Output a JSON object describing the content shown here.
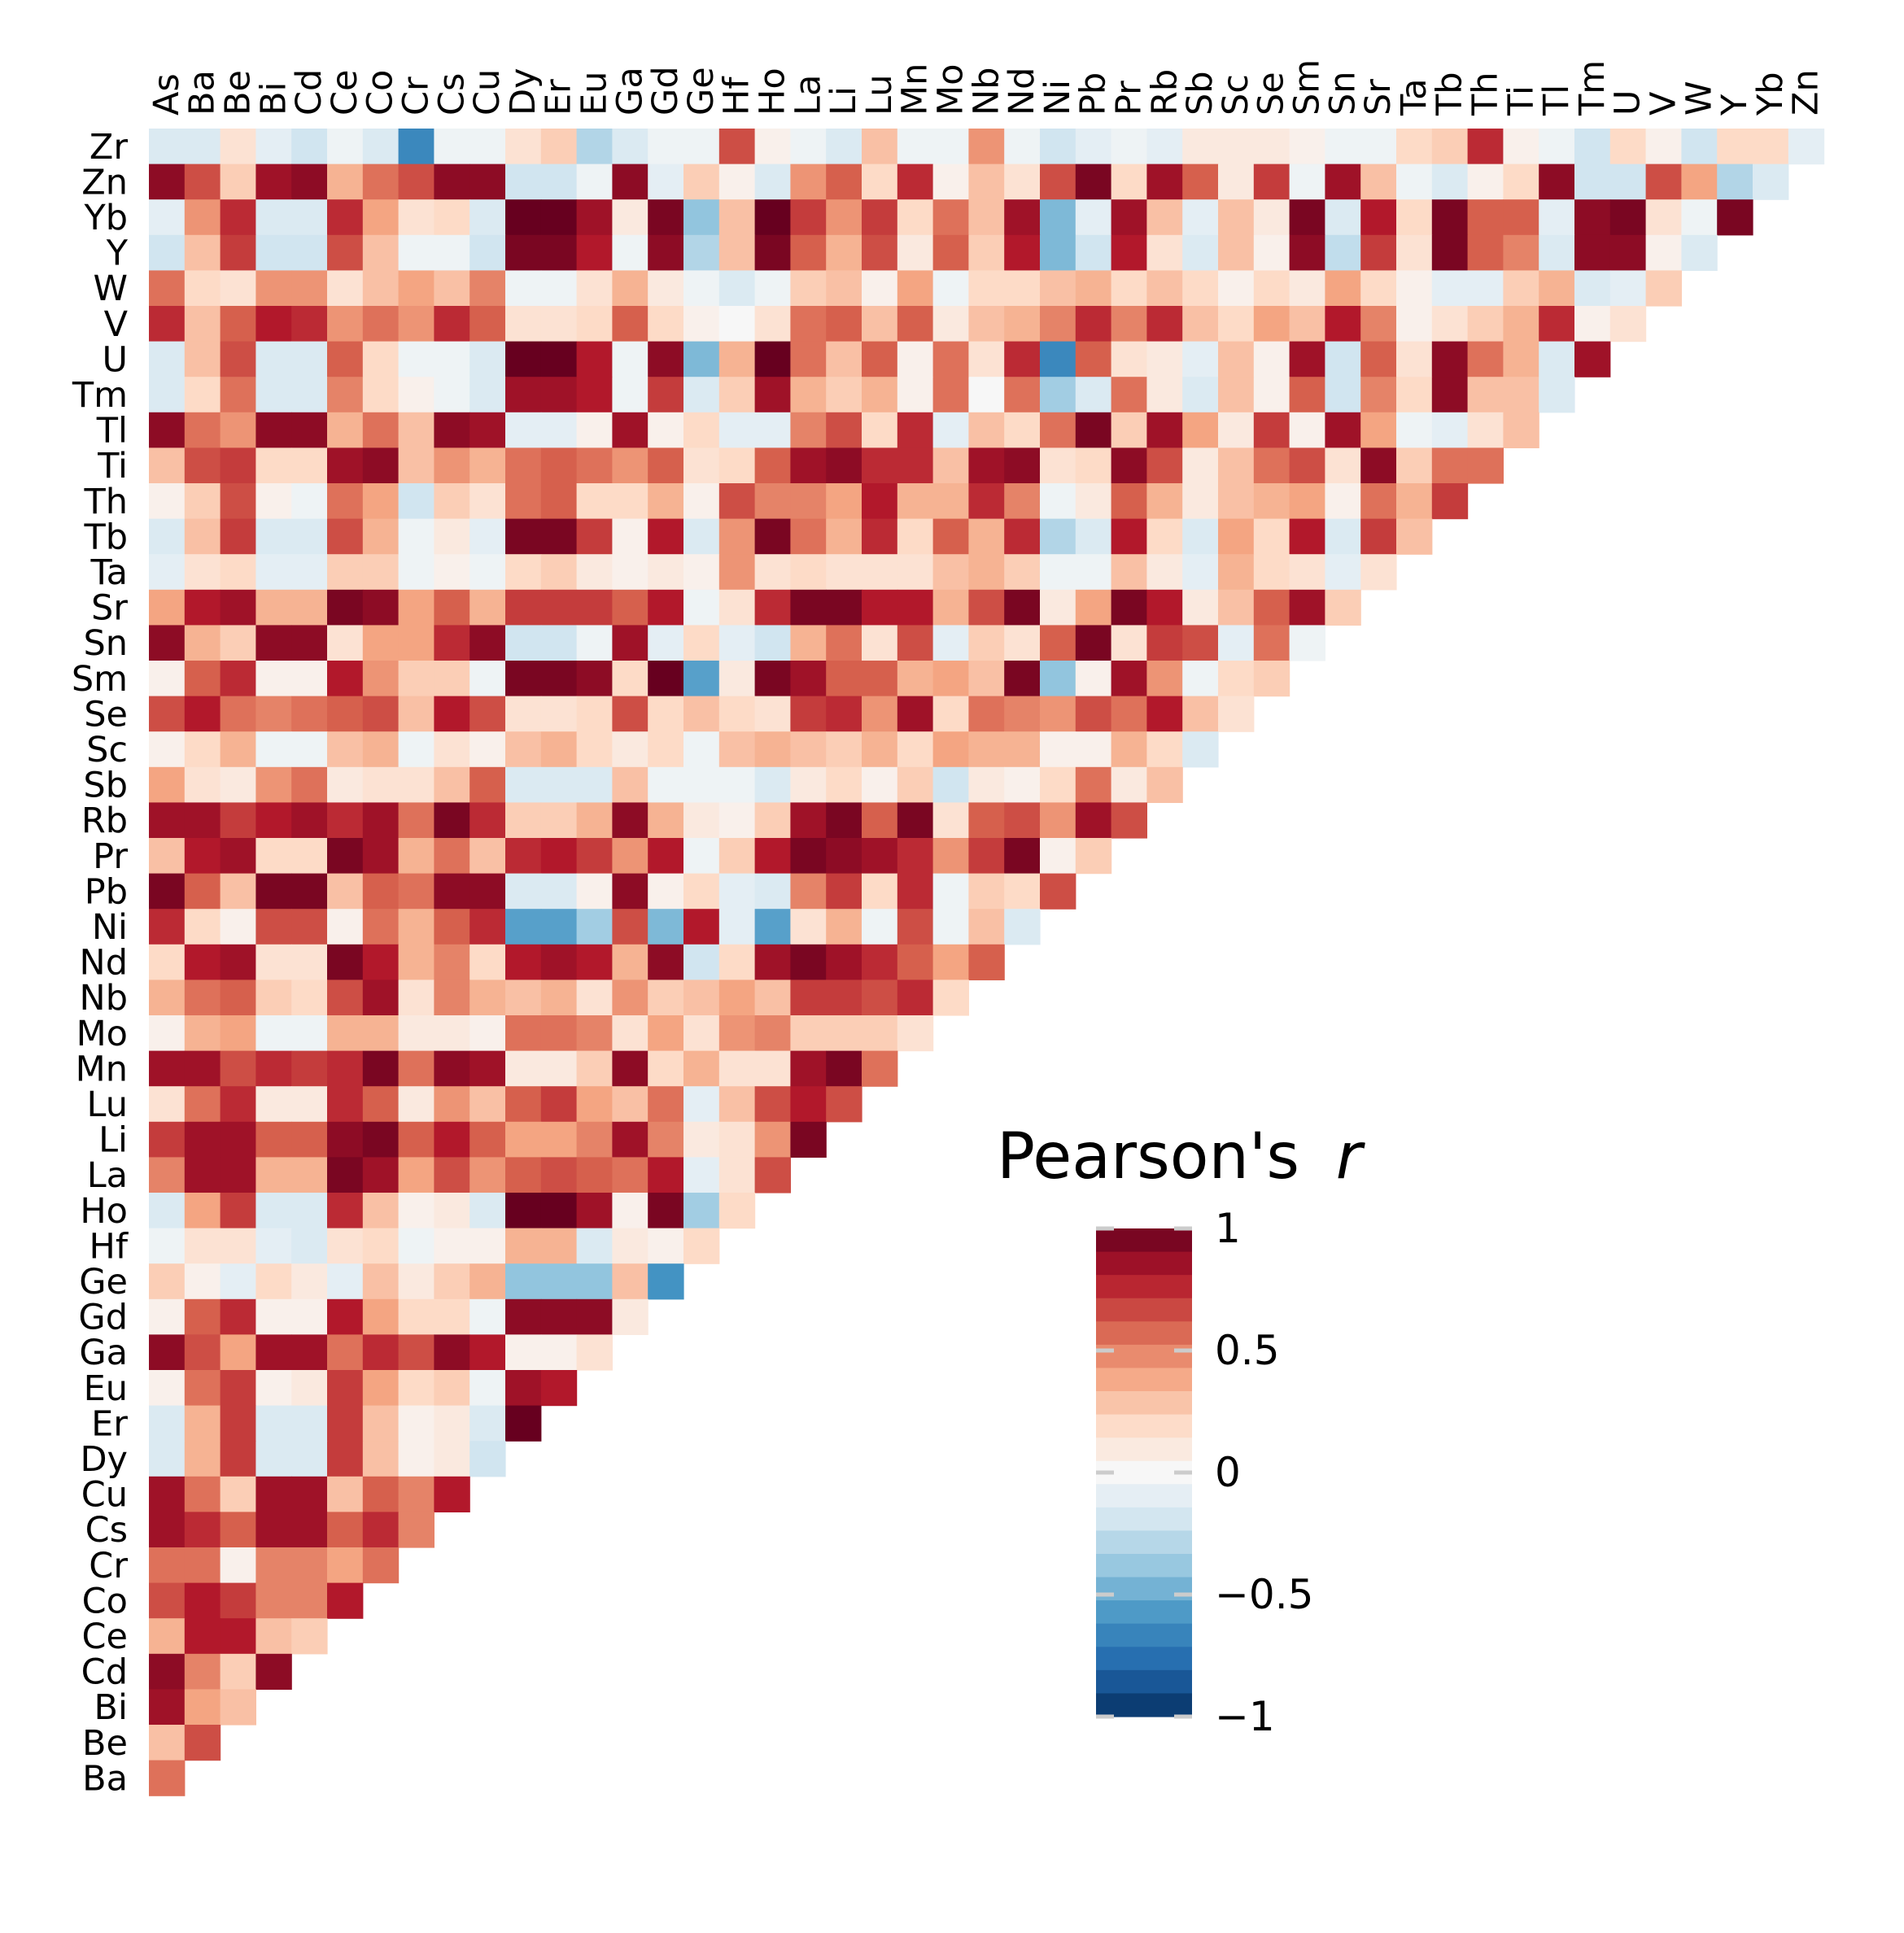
{
  "chart_data": {
    "type": "heatmap",
    "title": "",
    "xlabel": "",
    "ylabel": "",
    "x_labels": [
      "As",
      "Ba",
      "Be",
      "Bi",
      "Cd",
      "Ce",
      "Co",
      "Cr",
      "Cs",
      "Cu",
      "Dy",
      "Er",
      "Eu",
      "Ga",
      "Gd",
      "Ge",
      "Hf",
      "Ho",
      "La",
      "Li",
      "Lu",
      "Mn",
      "Mo",
      "Nb",
      "Nd",
      "Ni",
      "Pb",
      "Pr",
      "Rb",
      "Sb",
      "Sc",
      "Se",
      "Sm",
      "Sn",
      "Sr",
      "Ta",
      "Tb",
      "Th",
      "Ti",
      "Tl",
      "Tm",
      "U",
      "V",
      "W",
      "Y",
      "Yb",
      "Zn"
    ],
    "y_labels": [
      "Zr",
      "Zn",
      "Yb",
      "Y",
      "W",
      "V",
      "U",
      "Tm",
      "Tl",
      "Ti",
      "Th",
      "Tb",
      "Ta",
      "Sr",
      "Sn",
      "Sm",
      "Se",
      "Sc",
      "Sb",
      "Rb",
      "Pr",
      "Pb",
      "Ni",
      "Nd",
      "Nb",
      "Mo",
      "Mn",
      "Lu",
      "Li",
      "La",
      "Ho",
      "Hf",
      "Ge",
      "Gd",
      "Ga",
      "Eu",
      "Er",
      "Dy",
      "Cu",
      "Cs",
      "Cr",
      "Co",
      "Ce",
      "Cd",
      "Bi",
      "Be",
      "Ba"
    ],
    "values": [
      [
        -0.15,
        -0.15,
        0.15,
        -0.1,
        -0.2,
        -0.05,
        -0.15,
        -0.65,
        -0.05,
        -0.05,
        0.15,
        0.25,
        -0.3,
        -0.15,
        -0.05,
        -0.05,
        0.65,
        0.05,
        -0.05,
        -0.15,
        0.3,
        -0.05,
        -0.05,
        0.45,
        -0.05,
        -0.2,
        -0.1,
        -0.05,
        -0.1,
        0.1,
        0.1,
        0.1,
        0.05,
        -0.05,
        -0.05,
        0.2,
        0.25,
        0.75,
        0.05,
        -0.05,
        -0.2,
        0.2,
        0.05,
        -0.2,
        0.2,
        0.2,
        -0.1
      ],
      [
        0.9,
        0.65,
        0.25,
        0.85,
        0.9,
        0.35,
        0.55,
        0.65,
        0.9,
        0.9,
        -0.2,
        -0.2,
        -0.05,
        0.9,
        -0.1,
        0.25,
        0.05,
        -0.15,
        0.45,
        0.6,
        0.2,
        0.75,
        0.05,
        0.3,
        0.15,
        0.65,
        0.95,
        0.2,
        0.85,
        0.6,
        0.1,
        0.7,
        -0.05,
        0.85,
        0.3,
        -0.05,
        -0.15,
        0.05,
        0.2,
        0.9,
        -0.2,
        -0.2,
        0.65,
        0.4,
        -0.3,
        -0.15
      ],
      [
        -0.1,
        0.45,
        0.75,
        -0.15,
        -0.15,
        0.75,
        0.4,
        0.15,
        0.2,
        -0.15,
        1.0,
        1.0,
        0.85,
        0.1,
        0.95,
        -0.4,
        0.3,
        1.0,
        0.7,
        0.45,
        0.7,
        0.2,
        0.55,
        0.3,
        0.85,
        -0.45,
        -0.1,
        0.85,
        0.3,
        -0.1,
        0.3,
        0.1,
        0.95,
        -0.15,
        0.8,
        0.2,
        0.95,
        0.6,
        0.6,
        -0.1,
        0.9,
        0.95,
        0.15,
        -0.05,
        0.95
      ],
      [
        -0.2,
        0.3,
        0.7,
        -0.2,
        -0.2,
        0.65,
        0.3,
        -0.05,
        -0.05,
        -0.2,
        0.95,
        0.95,
        0.8,
        -0.05,
        0.9,
        -0.3,
        0.3,
        0.95,
        0.6,
        0.35,
        0.65,
        0.1,
        0.6,
        0.25,
        0.8,
        -0.45,
        -0.2,
        0.8,
        0.15,
        -0.15,
        0.3,
        0.05,
        0.9,
        -0.25,
        0.7,
        0.15,
        0.95,
        0.6,
        0.5,
        -0.15,
        0.9,
        0.9,
        0.05,
        -0.15
      ],
      [
        0.55,
        0.2,
        0.15,
        0.45,
        0.45,
        0.15,
        0.3,
        0.4,
        0.3,
        0.5,
        -0.05,
        -0.05,
        0.15,
        0.35,
        0.1,
        -0.05,
        -0.15,
        -0.05,
        0.25,
        0.3,
        0.05,
        0.4,
        -0.05,
        0.2,
        0.2,
        0.3,
        0.35,
        0.2,
        0.3,
        0.2,
        0.05,
        0.2,
        0.1,
        0.4,
        0.2,
        0.05,
        -0.1,
        -0.1,
        0.25,
        0.35,
        -0.15,
        -0.1,
        0.25
      ],
      [
        0.75,
        0.3,
        0.6,
        0.8,
        0.75,
        0.45,
        0.55,
        0.45,
        0.75,
        0.6,
        0.15,
        0.15,
        0.2,
        0.6,
        0.2,
        0.05,
        0.0,
        0.15,
        0.55,
        0.6,
        0.3,
        0.6,
        0.1,
        0.3,
        0.35,
        0.5,
        0.75,
        0.5,
        0.75,
        0.3,
        0.2,
        0.4,
        0.3,
        0.8,
        0.5,
        0.05,
        0.15,
        0.25,
        0.35,
        0.75,
        0.05,
        0.15
      ],
      [
        -0.15,
        0.3,
        0.65,
        -0.15,
        -0.15,
        0.6,
        0.2,
        -0.05,
        -0.05,
        -0.15,
        1.0,
        1.0,
        0.8,
        -0.05,
        0.9,
        -0.45,
        0.35,
        1.0,
        0.55,
        0.3,
        0.6,
        0.05,
        0.55,
        0.15,
        0.75,
        -0.65,
        0.6,
        0.15,
        0.1,
        -0.1,
        0.3,
        0.05,
        0.85,
        -0.2,
        0.6,
        0.15,
        0.9,
        0.55,
        0.35,
        -0.15,
        0.85
      ],
      [
        -0.15,
        0.2,
        0.55,
        -0.15,
        -0.15,
        0.5,
        0.2,
        0.05,
        -0.05,
        -0.15,
        0.85,
        0.85,
        0.8,
        -0.05,
        0.7,
        -0.15,
        0.25,
        0.85,
        0.35,
        0.25,
        0.35,
        0.05,
        0.55,
        0.0,
        0.55,
        -0.35,
        -0.15,
        0.55,
        0.1,
        -0.15,
        0.3,
        0.05,
        0.6,
        -0.2,
        0.5,
        0.2,
        0.9,
        0.3,
        0.3,
        -0.15
      ],
      [
        0.9,
        0.55,
        0.45,
        0.9,
        0.9,
        0.35,
        0.55,
        0.3,
        0.9,
        0.85,
        -0.1,
        -0.1,
        0.05,
        0.85,
        0.05,
        0.2,
        -0.1,
        -0.1,
        0.5,
        0.65,
        0.2,
        0.75,
        -0.1,
        0.3,
        0.2,
        0.55,
        0.95,
        0.25,
        0.85,
        0.4,
        0.1,
        0.7,
        0.05,
        0.85,
        0.4,
        -0.05,
        -0.1,
        0.15,
        0.3
      ],
      [
        0.3,
        0.65,
        0.7,
        0.2,
        0.2,
        0.85,
        0.9,
        0.3,
        0.45,
        0.35,
        0.55,
        0.6,
        0.55,
        0.45,
        0.6,
        0.15,
        0.2,
        0.6,
        0.85,
        0.9,
        0.75,
        0.75,
        0.3,
        0.85,
        0.9,
        0.15,
        0.2,
        0.9,
        0.65,
        0.1,
        0.3,
        0.55,
        0.65,
        0.15,
        0.9,
        0.25,
        0.55,
        0.55
      ],
      [
        0.05,
        0.25,
        0.65,
        0.05,
        -0.05,
        0.55,
        0.4,
        -0.2,
        0.25,
        0.15,
        0.55,
        0.6,
        0.2,
        0.2,
        0.35,
        0.05,
        0.65,
        0.5,
        0.5,
        0.4,
        0.8,
        0.35,
        0.35,
        0.75,
        0.5,
        -0.05,
        0.1,
        0.6,
        0.35,
        0.1,
        0.3,
        0.35,
        0.4,
        0.05,
        0.55,
        0.35,
        0.7
      ],
      [
        -0.15,
        0.3,
        0.7,
        -0.15,
        -0.15,
        0.65,
        0.35,
        -0.05,
        0.1,
        -0.1,
        0.95,
        0.95,
        0.7,
        0.05,
        0.8,
        -0.15,
        0.45,
        0.95,
        0.55,
        0.35,
        0.75,
        0.2,
        0.6,
        0.35,
        0.75,
        -0.3,
        -0.15,
        0.8,
        0.2,
        -0.15,
        0.4,
        0.2,
        0.8,
        -0.15,
        0.7,
        0.3
      ],
      [
        -0.1,
        0.15,
        0.2,
        -0.1,
        -0.1,
        0.25,
        0.25,
        -0.05,
        0.05,
        -0.05,
        0.2,
        0.25,
        0.1,
        0.05,
        0.1,
        0.05,
        0.45,
        0.15,
        0.2,
        0.15,
        0.15,
        0.15,
        0.3,
        0.35,
        0.25,
        -0.05,
        -0.05,
        0.3,
        0.1,
        -0.1,
        0.35,
        0.2,
        0.15,
        -0.1,
        0.15
      ],
      [
        0.4,
        0.8,
        0.85,
        0.35,
        0.35,
        0.95,
        0.9,
        0.4,
        0.6,
        0.35,
        0.7,
        0.7,
        0.7,
        0.6,
        0.8,
        -0.05,
        0.15,
        0.75,
        0.95,
        0.95,
        0.8,
        0.8,
        0.35,
        0.65,
        0.95,
        0.1,
        0.4,
        0.95,
        0.8,
        0.1,
        0.3,
        0.6,
        0.85,
        0.25
      ],
      [
        0.9,
        0.35,
        0.25,
        0.9,
        0.9,
        0.15,
        0.4,
        0.4,
        0.75,
        0.9,
        -0.2,
        -0.2,
        -0.05,
        0.85,
        -0.1,
        0.2,
        -0.1,
        -0.2,
        0.35,
        0.55,
        0.15,
        0.65,
        -0.1,
        0.25,
        0.15,
        0.6,
        0.95,
        0.15,
        0.7,
        0.65,
        -0.1,
        0.55,
        -0.05
      ],
      [
        0.05,
        0.6,
        0.75,
        0.05,
        0.05,
        0.8,
        0.45,
        0.25,
        0.25,
        -0.05,
        0.95,
        0.95,
        0.9,
        0.2,
        1.0,
        -0.55,
        0.1,
        0.95,
        0.85,
        0.6,
        0.6,
        0.35,
        0.4,
        0.3,
        0.95,
        -0.4,
        0.05,
        0.85,
        0.45,
        -0.05,
        0.2,
        0.25
      ],
      [
        0.65,
        0.8,
        0.55,
        0.5,
        0.55,
        0.6,
        0.65,
        0.3,
        0.8,
        0.65,
        0.15,
        0.15,
        0.2,
        0.65,
        0.2,
        0.3,
        0.2,
        0.15,
        0.7,
        0.75,
        0.45,
        0.85,
        0.2,
        0.55,
        0.5,
        0.45,
        0.65,
        0.55,
        0.8,
        0.3,
        0.15
      ],
      [
        0.05,
        0.2,
        0.35,
        -0.05,
        -0.05,
        0.3,
        0.35,
        -0.05,
        0.15,
        0.05,
        0.3,
        0.35,
        0.2,
        0.1,
        0.2,
        -0.05,
        0.3,
        0.35,
        0.3,
        0.25,
        0.35,
        0.2,
        0.4,
        0.35,
        0.35,
        0.05,
        0.05,
        0.35,
        0.2,
        -0.15
      ],
      [
        0.4,
        0.15,
        0.1,
        0.45,
        0.55,
        0.1,
        0.15,
        0.15,
        0.3,
        0.6,
        -0.15,
        -0.15,
        -0.15,
        0.3,
        -0.05,
        -0.05,
        -0.05,
        -0.15,
        0.1,
        0.2,
        0.05,
        0.25,
        -0.2,
        0.1,
        0.05,
        0.2,
        0.55,
        0.1,
        0.3
      ],
      [
        0.85,
        0.85,
        0.7,
        0.8,
        0.85,
        0.75,
        0.85,
        0.55,
        0.95,
        0.75,
        0.25,
        0.25,
        0.35,
        0.9,
        0.35,
        0.1,
        0.05,
        0.25,
        0.85,
        0.95,
        0.6,
        0.95,
        0.15,
        0.6,
        0.65,
        0.45,
        0.85,
        0.65
      ],
      [
        0.3,
        0.8,
        0.85,
        0.2,
        0.2,
        0.95,
        0.85,
        0.35,
        0.55,
        0.3,
        0.75,
        0.8,
        0.7,
        0.45,
        0.8,
        -0.05,
        0.25,
        0.8,
        0.95,
        0.9,
        0.85,
        0.75,
        0.45,
        0.7,
        0.95,
        0.05,
        0.25
      ],
      [
        0.95,
        0.6,
        0.3,
        0.95,
        0.95,
        0.3,
        0.6,
        0.55,
        0.9,
        0.9,
        -0.15,
        -0.15,
        0.05,
        0.9,
        0.05,
        0.2,
        -0.1,
        -0.15,
        0.5,
        0.7,
        0.2,
        0.75,
        -0.05,
        0.25,
        0.2,
        0.65
      ],
      [
        0.75,
        0.2,
        0.05,
        0.65,
        0.65,
        0.05,
        0.55,
        0.35,
        0.6,
        0.75,
        -0.55,
        -0.55,
        -0.35,
        0.65,
        -0.45,
        0.8,
        -0.1,
        -0.55,
        0.15,
        0.35,
        -0.05,
        0.65,
        -0.05,
        0.3,
        -0.15
      ],
      [
        0.2,
        0.8,
        0.85,
        0.15,
        0.15,
        0.95,
        0.8,
        0.35,
        0.5,
        0.2,
        0.8,
        0.85,
        0.8,
        0.35,
        0.9,
        -0.2,
        0.2,
        0.85,
        0.95,
        0.85,
        0.75,
        0.6,
        0.4,
        0.6
      ],
      [
        0.35,
        0.55,
        0.6,
        0.25,
        0.2,
        0.65,
        0.85,
        0.15,
        0.5,
        0.35,
        0.3,
        0.35,
        0.15,
        0.45,
        0.25,
        0.3,
        0.4,
        0.3,
        0.7,
        0.7,
        0.65,
        0.75,
        0.2
      ],
      [
        0.05,
        0.35,
        0.4,
        -0.05,
        -0.05,
        0.35,
        0.35,
        0.1,
        0.1,
        0.05,
        0.55,
        0.55,
        0.5,
        0.15,
        0.4,
        0.15,
        0.45,
        0.5,
        0.25,
        0.25,
        0.25,
        0.15
      ],
      [
        0.85,
        0.85,
        0.65,
        0.75,
        0.7,
        0.75,
        0.95,
        0.55,
        0.9,
        0.85,
        0.1,
        0.1,
        0.25,
        0.9,
        0.2,
        0.35,
        0.15,
        0.15,
        0.85,
        0.95,
        0.55
      ],
      [
        0.15,
        0.55,
        0.75,
        0.1,
        0.1,
        0.75,
        0.6,
        0.1,
        0.45,
        0.3,
        0.6,
        0.7,
        0.4,
        0.3,
        0.55,
        -0.1,
        0.3,
        0.65,
        0.8,
        0.65
      ],
      [
        0.7,
        0.85,
        0.85,
        0.6,
        0.6,
        0.9,
        0.95,
        0.6,
        0.8,
        0.6,
        0.4,
        0.4,
        0.5,
        0.85,
        0.5,
        0.1,
        0.15,
        0.45,
        0.95
      ],
      [
        0.5,
        0.85,
        0.85,
        0.35,
        0.35,
        0.95,
        0.85,
        0.4,
        0.65,
        0.45,
        0.6,
        0.65,
        0.6,
        0.55,
        0.8,
        -0.1,
        0.15,
        0.65
      ],
      [
        -0.15,
        0.4,
        0.7,
        -0.15,
        -0.15,
        0.75,
        0.3,
        0.05,
        0.1,
        -0.15,
        1.0,
        1.0,
        0.85,
        0.05,
        0.95,
        -0.35,
        0.2
      ],
      [
        -0.05,
        0.15,
        0.15,
        -0.1,
        -0.15,
        0.15,
        0.2,
        -0.05,
        0.05,
        0.05,
        0.35,
        0.35,
        -0.15,
        0.1,
        0.05,
        0.2
      ],
      [
        0.25,
        0.05,
        -0.1,
        0.2,
        0.1,
        -0.1,
        0.3,
        0.1,
        0.25,
        0.35,
        -0.4,
        -0.4,
        -0.4,
        0.3,
        -0.6
      ],
      [
        0.05,
        0.6,
        0.75,
        0.05,
        0.05,
        0.8,
        0.4,
        0.2,
        0.2,
        -0.05,
        0.9,
        0.9,
        0.9,
        0.1
      ],
      [
        0.9,
        0.65,
        0.4,
        0.85,
        0.85,
        0.55,
        0.75,
        0.65,
        0.9,
        0.8,
        0.05,
        0.05,
        0.15
      ],
      [
        0.05,
        0.55,
        0.7,
        0.05,
        0.1,
        0.7,
        0.4,
        0.2,
        0.25,
        -0.05,
        0.85,
        0.8
      ],
      [
        -0.15,
        0.35,
        0.7,
        -0.15,
        -0.15,
        0.7,
        0.3,
        0.05,
        0.1,
        -0.15,
        1.0
      ],
      [
        -0.15,
        0.35,
        0.7,
        -0.15,
        -0.15,
        0.7,
        0.3,
        0.05,
        0.1,
        -0.2
      ],
      [
        0.85,
        0.55,
        0.25,
        0.85,
        0.85,
        0.3,
        0.6,
        0.5,
        0.8
      ],
      [
        0.85,
        0.75,
        0.6,
        0.85,
        0.85,
        0.6,
        0.75,
        0.5
      ],
      [
        0.55,
        0.55,
        0.05,
        0.5,
        0.5,
        0.4,
        0.55
      ],
      [
        0.65,
        0.8,
        0.7,
        0.5,
        0.5,
        0.8
      ],
      [
        0.35,
        0.8,
        0.8,
        0.3,
        0.25
      ],
      [
        0.9,
        0.5,
        0.25,
        0.9
      ],
      [
        0.85,
        0.4,
        0.3
      ],
      [
        0.3,
        0.65
      ],
      [
        0.55
      ]
    ],
    "vmin": -1,
    "vmax": 1,
    "grid": false,
    "colorbar": {
      "title_main": "Pearson's",
      "title_var": "r",
      "ticks": [
        1,
        0.5,
        0,
        -0.5,
        -1
      ],
      "tick_labels": [
        "1",
        "0.5",
        "0",
        "−0.5",
        "−1"
      ],
      "levels": 21,
      "position": "right"
    },
    "colorscale": [
      "#053061",
      "#2166ac",
      "#4393c3",
      "#92c5de",
      "#d1e5f0",
      "#f7f7f7",
      "#fddbc7",
      "#f4a582",
      "#d6604d",
      "#b2182b",
      "#67001f"
    ]
  }
}
